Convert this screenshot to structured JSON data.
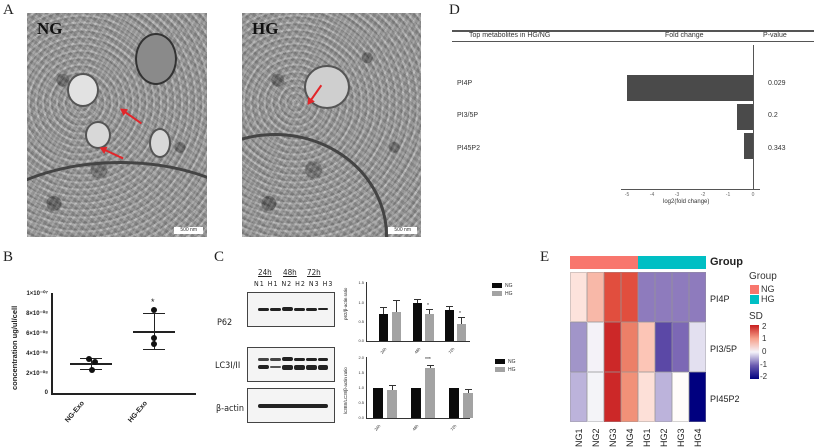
{
  "figure": {
    "panels": {
      "A": {
        "letter": "A",
        "images": [
          {
            "label": "NG",
            "scale_bar": "500 nm",
            "arrows": 2
          },
          {
            "label": "HG",
            "scale_bar": "500 nm",
            "arrows": 1
          }
        ]
      },
      "B": {
        "letter": "B"
      },
      "C": {
        "letter": "C"
      },
      "D": {
        "letter": "D"
      },
      "E": {
        "letter": "E"
      }
    }
  },
  "chart_data": [
    {
      "panel": "B",
      "type": "scatter",
      "title": "",
      "ylabel": "concentration ug/ul/cell",
      "xlabel": "",
      "categories": [
        "NG-Exo",
        "HG-Exo"
      ],
      "yticks": [
        "0",
        "2×10⁻⁰⁸",
        "4×10⁻⁰⁸",
        "6×10⁻⁰⁸",
        "8×10⁻⁰⁸",
        "1×10⁻⁰⁷"
      ],
      "ylim": [
        0,
        1e-07
      ],
      "points": {
        "NG-Exo": [
          3.4e-08,
          3.05e-08,
          2.3e-08
        ],
        "HG-Exo": [
          8.3e-08,
          5.5e-08,
          4.9e-08
        ]
      },
      "mean": {
        "NG-Exo": 2.95e-08,
        "HG-Exo": 6.23e-08
      },
      "sd": {
        "NG-Exo": 5.5e-09,
        "HG-Exo": 1.85e-08
      },
      "annotations": [
        {
          "category": "HG-Exo",
          "text": "*"
        }
      ]
    },
    {
      "panel": "C-top",
      "type": "bar",
      "ylabel": "p62/β-actin ratio",
      "categories": [
        "24h",
        "48h",
        "72h"
      ],
      "ylim": [
        0,
        1.5
      ],
      "yticks": [
        "0.0",
        "0.5",
        "1.0",
        "1.5"
      ],
      "series": [
        {
          "name": "NG",
          "color": "#0b0b0b",
          "values": [
            0.68,
            0.95,
            0.78
          ],
          "err": [
            0.18,
            0.1,
            0.1
          ]
        },
        {
          "name": "HG",
          "color": "#a3a3a3",
          "values": [
            0.73,
            0.68,
            0.42
          ],
          "err": [
            0.3,
            0.12,
            0.18
          ]
        }
      ],
      "annotations": [
        {
          "category": "48h",
          "series": "HG",
          "text": "*"
        },
        {
          "category": "72h",
          "series": "HG",
          "text": "*"
        }
      ],
      "legend_position": "right"
    },
    {
      "panel": "C-bottom",
      "type": "bar",
      "ylabel": "lc3BII/LC3I/β-actin ratio",
      "categories": [
        "24h",
        "48h",
        "72h"
      ],
      "ylim": [
        0,
        2.0
      ],
      "yticks": [
        "0.0",
        "0.5",
        "1.0",
        "1.5",
        "2.0"
      ],
      "series": [
        {
          "name": "NG",
          "color": "#0b0b0b",
          "values": [
            1.0,
            1.0,
            1.0
          ],
          "err": [
            0,
            0,
            0
          ]
        },
        {
          "name": "HG",
          "color": "#a3a3a3",
          "values": [
            0.94,
            1.65,
            0.84
          ],
          "err": [
            0.14,
            0.1,
            0.12
          ]
        }
      ],
      "annotations": [
        {
          "category": "48h",
          "series": "HG",
          "text": "***"
        }
      ],
      "legend_position": "right"
    },
    {
      "panel": "D",
      "type": "bar",
      "orientation": "horizontal",
      "table_headers": [
        "Top metabolites in HG/NG",
        "Fold change",
        "P-value"
      ],
      "categories": [
        "PI4P",
        "PI3/5P",
        "PI45P2"
      ],
      "values": [
        -5.0,
        -0.65,
        -0.35
      ],
      "p_values": [
        "0.029",
        "0.2",
        "0.343"
      ],
      "xlabel": "log2(fold change)",
      "xticks": [
        "-5",
        "-4",
        "-3",
        "-2",
        "-1",
        "0"
      ],
      "xlim": [
        -5.2,
        0.2
      ]
    },
    {
      "panel": "E",
      "type": "heatmap",
      "columns": [
        "NG1",
        "NG2",
        "NG3",
        "NG4",
        "HG1",
        "HG2",
        "HG3",
        "HG4"
      ],
      "rows": [
        "PI4P",
        "PI3/5P",
        "PI45P2"
      ],
      "group_annotation": {
        "title": "Group",
        "groups": [
          "NG",
          "NG",
          "NG",
          "NG",
          "HG",
          "HG",
          "HG",
          "HG"
        ],
        "colors": {
          "NG": "#f8766d",
          "HG": "#00bfc4"
        }
      },
      "values": [
        [
          0.2,
          0.6,
          1.4,
          1.4,
          -0.9,
          -0.9,
          -0.9,
          -0.9
        ],
        [
          -0.8,
          0.0,
          1.9,
          1.1,
          0.5,
          -1.4,
          -1.2,
          -0.2
        ],
        [
          -0.6,
          0.0,
          1.9,
          0.9,
          0.2,
          -0.6,
          0.0,
          -2.0
        ]
      ],
      "cell_colors": [
        [
          "#fde3dc",
          "#f8b8a8",
          "#e14e3e",
          "#e14e3e",
          "#8e7bbd",
          "#8e7bbd",
          "#8e7bbd",
          "#8e7bbd"
        ],
        [
          "#a195c9",
          "#f4f2f8",
          "#cc2828",
          "#ec7f68",
          "#fcc5b6",
          "#5b48a6",
          "#7c68b5",
          "#e3e0f0"
        ],
        [
          "#bcb3db",
          "#f4f4f8",
          "#cc2828",
          "#f19178",
          "#fde0d8",
          "#bcb3db",
          "#fffcfa",
          "#00007f"
        ]
      ],
      "legend": {
        "group_title": "Group",
        "group_items": [
          {
            "label": "NG",
            "color": "#f8766d"
          },
          {
            "label": "HG",
            "color": "#00bfc4"
          }
        ],
        "scale_title": "SD",
        "scale_ticks": [
          "2",
          "1",
          "0",
          "-1",
          "-2"
        ],
        "scale_colors": [
          "#c81e1e",
          "#f7a08a",
          "#f5f3fa",
          "#6a5ab0",
          "#00007f"
        ]
      }
    }
  ]
}
